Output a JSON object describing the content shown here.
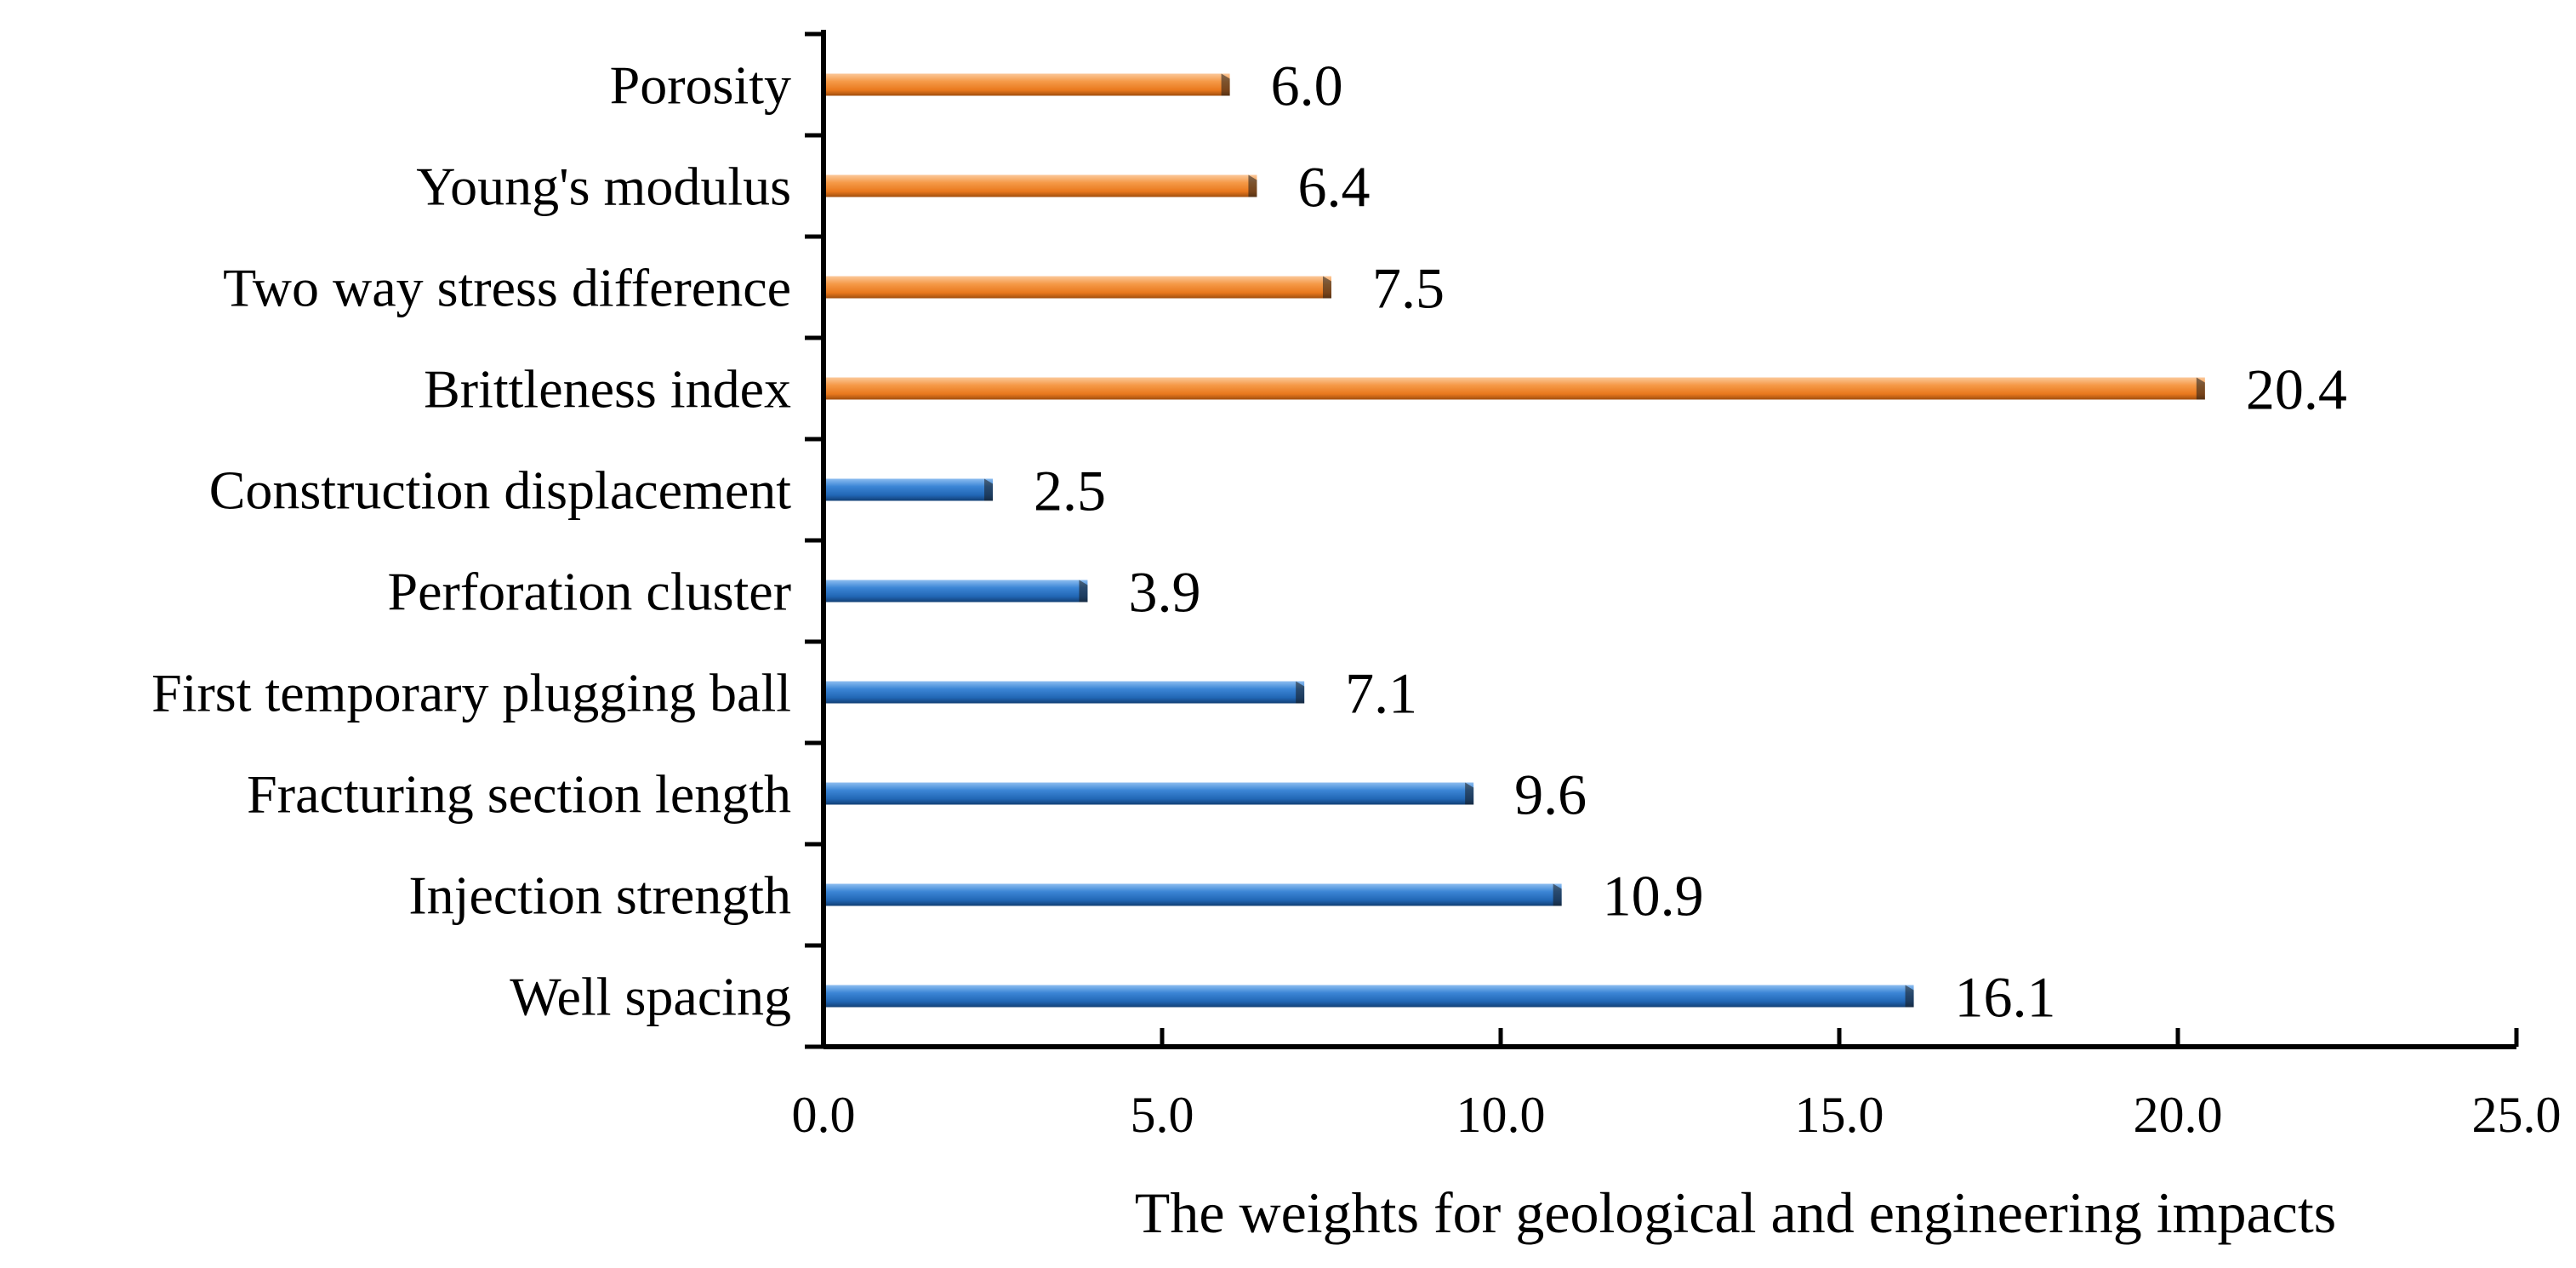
{
  "chart_data": {
    "type": "bar",
    "orientation": "horizontal",
    "categories": [
      "Porosity",
      "Young's modulus",
      "Two way stress difference",
      "Brittleness index",
      "Construction displacement",
      "Perforation cluster",
      "First temporary plugging ball",
      "Fracturing section length",
      "Injection strength",
      "Well spacing"
    ],
    "values": [
      6.0,
      6.4,
      7.5,
      20.4,
      2.5,
      3.9,
      7.1,
      9.6,
      10.9,
      16.1
    ],
    "value_labels": [
      "6.0",
      "6.4",
      "7.5",
      "20.4",
      "2.5",
      "3.9",
      "7.1",
      "9.6",
      "10.9",
      "16.1"
    ],
    "groups": [
      "geological",
      "geological",
      "geological",
      "geological",
      "engineering",
      "engineering",
      "engineering",
      "engineering",
      "engineering",
      "engineering"
    ],
    "colors": {
      "geological": "#f28a30",
      "engineering": "#2f78c6"
    },
    "xlabel": "The weights for geological and engineering impacts",
    "ylabel": "",
    "xlim": [
      0,
      25
    ],
    "xticks": [
      0,
      5,
      10,
      15,
      20,
      25
    ],
    "xtick_labels": [
      "0.0",
      "5.0",
      "10.0",
      "15.0",
      "20.0",
      "25.0"
    ],
    "grid": false,
    "legend": "none"
  }
}
